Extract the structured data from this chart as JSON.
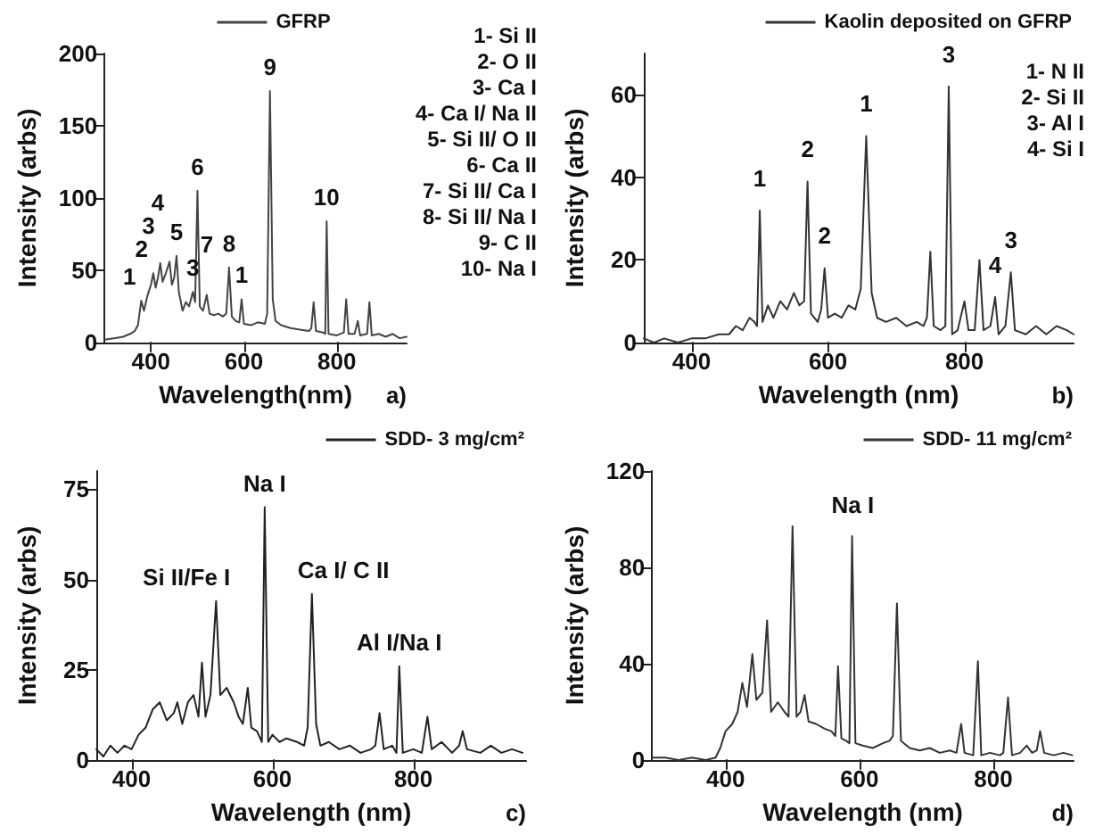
{
  "chart_data": [
    {
      "type": "line",
      "xlabel": "Wavelength(nm)",
      "ylabel": "Intensity (arbs)",
      "subtitle": "a)",
      "xlim": [
        300,
        950
      ],
      "xticks": [
        400,
        600,
        800
      ],
      "ylim": [
        0,
        200
      ],
      "yticks": [
        0,
        50,
        100,
        150,
        200
      ],
      "grid": false,
      "legend": "top",
      "marker": "none",
      "line_style": "solid",
      "x": [
        300,
        320,
        340,
        355,
        365,
        372,
        379,
        385,
        392,
        400,
        405,
        410,
        415,
        420,
        425,
        432,
        440,
        445,
        450,
        455,
        460,
        468,
        475,
        482,
        490,
        495,
        500,
        505,
        512,
        520,
        526,
        535,
        545,
        555,
        562,
        568,
        574,
        582,
        590,
        595,
        600,
        615,
        630,
        645,
        650,
        656,
        662,
        668,
        680,
        700,
        720,
        740,
        745,
        750,
        755,
        770,
        775,
        778,
        782,
        800,
        815,
        820,
        825,
        838,
        845,
        850,
        865,
        870,
        875,
        890,
        905,
        920,
        935,
        950
      ],
      "series": [
        {
          "name": "GFRP",
          "color": "#444444",
          "values": [
            2,
            3,
            4,
            6,
            8,
            12,
            29,
            22,
            32,
            40,
            48,
            38,
            45,
            55,
            42,
            48,
            56,
            40,
            45,
            60,
            35,
            22,
            28,
            25,
            35,
            28,
            105,
            25,
            22,
            33,
            20,
            19,
            20,
            18,
            20,
            52,
            18,
            15,
            14,
            30,
            13,
            12,
            14,
            13,
            20,
            174,
            30,
            15,
            12,
            10,
            9,
            8,
            10,
            28,
            8,
            7,
            6,
            84,
            6,
            5,
            7,
            30,
            6,
            6,
            15,
            5,
            6,
            28,
            5,
            6,
            4,
            6,
            3,
            4
          ]
        }
      ],
      "annotations": [
        {
          "text": "1",
          "x": 379,
          "y": 29
        },
        {
          "text": "2",
          "x": 405,
          "y": 48
        },
        {
          "text": "3",
          "x": 420,
          "y": 55
        },
        {
          "text": "4",
          "x": 440,
          "y": 56
        },
        {
          "text": "5",
          "x": 455,
          "y": 60
        },
        {
          "text": "3",
          "x": 490,
          "y": 35
        },
        {
          "text": "6",
          "x": 500,
          "y": 105
        },
        {
          "text": "7",
          "x": 520,
          "y": 33
        },
        {
          "text": "8",
          "x": 568,
          "y": 52
        },
        {
          "text": "1",
          "x": 595,
          "y": 30
        },
        {
          "text": "9",
          "x": 656,
          "y": 174
        },
        {
          "text": "10",
          "x": 778,
          "y": 84
        },
        "1- Si II",
        "2- O II",
        "3- Ca I",
        "4- Ca I/ Na II",
        "5- Si II/ O II",
        "6- Ca II",
        "7- Si II/ Ca I",
        "8- Si II/ Na I",
        "9- C II",
        "10- Na I"
      ]
    },
    {
      "type": "line",
      "xlabel": "Wavelength (nm)",
      "ylabel": "Intensity (arbs)",
      "subtitle": "b)",
      "xlim": [
        330,
        960
      ],
      "xticks": [
        400,
        600,
        800
      ],
      "ylim": [
        0,
        70
      ],
      "yticks": [
        0,
        20,
        40,
        60
      ],
      "grid": false,
      "legend": "top right",
      "marker": "none",
      "line_style": "solid",
      "x": [
        330,
        345,
        360,
        380,
        400,
        420,
        440,
        455,
        465,
        475,
        485,
        492,
        496,
        500,
        504,
        512,
        520,
        530,
        540,
        550,
        558,
        565,
        570,
        575,
        585,
        590,
        595,
        600,
        610,
        620,
        630,
        640,
        648,
        656,
        664,
        672,
        685,
        700,
        715,
        730,
        740,
        745,
        750,
        755,
        765,
        772,
        777,
        782,
        790,
        800,
        806,
        815,
        822,
        828,
        838,
        845,
        850,
        860,
        868,
        874,
        890,
        905,
        920,
        935,
        950,
        960
      ],
      "series": [
        {
          "name": "Kaolin deposited on GFRP",
          "color": "#333333",
          "values": [
            1,
            0,
            1,
            0,
            1,
            1,
            2,
            2,
            4,
            3,
            6,
            5,
            4,
            32,
            5,
            9,
            6,
            10,
            8,
            12,
            9,
            10,
            39,
            7,
            5,
            8,
            18,
            6,
            7,
            6,
            9,
            8,
            13,
            50,
            12,
            6,
            5,
            6,
            4,
            5,
            4,
            6,
            22,
            4,
            3,
            4,
            62,
            2,
            3,
            10,
            3,
            3,
            20,
            3,
            4,
            11,
            2,
            4,
            17,
            3,
            2,
            4,
            2,
            4,
            3,
            2
          ]
        }
      ],
      "annotations": [
        {
          "text": "1",
          "x": 500,
          "y": 34
        },
        {
          "text": "2",
          "x": 570,
          "y": 41
        },
        {
          "text": "2",
          "x": 595,
          "y": 20
        },
        {
          "text": "1",
          "x": 656,
          "y": 52
        },
        {
          "text": "3",
          "x": 777,
          "y": 64
        },
        {
          "text": "4",
          "x": 845,
          "y": 13
        },
        {
          "text": "3",
          "x": 868,
          "y": 19
        },
        "1- N II",
        "2- Si II",
        "3- Al I",
        "4- Si I"
      ]
    },
    {
      "type": "line",
      "xlabel": "Wavelength (nm)",
      "ylabel": "Intensity (arbs)",
      "subtitle": "c)",
      "xlim": [
        350,
        960
      ],
      "xticks": [
        400,
        600,
        800
      ],
      "ylim": [
        0,
        80
      ],
      "yticks": [
        0,
        25,
        50,
        75
      ],
      "grid": false,
      "legend": "top right",
      "marker": "none",
      "line_style": "solid",
      "x": [
        350,
        360,
        370,
        380,
        390,
        400,
        410,
        420,
        430,
        440,
        450,
        460,
        465,
        472,
        480,
        488,
        495,
        500,
        505,
        512,
        520,
        526,
        535,
        545,
        552,
        558,
        565,
        570,
        578,
        585,
        589,
        594,
        600,
        610,
        620,
        635,
        645,
        650,
        656,
        662,
        668,
        680,
        695,
        710,
        725,
        740,
        746,
        752,
        758,
        770,
        776,
        780,
        785,
        800,
        812,
        820,
        826,
        840,
        855,
        865,
        870,
        876,
        895,
        910,
        925,
        940,
        955
      ],
      "series": [
        {
          "name": "SDD- 3 mg/cm²",
          "color": "#222222",
          "values": [
            3,
            1,
            4,
            2,
            4,
            3,
            7,
            9,
            14,
            16,
            11,
            13,
            16,
            10,
            16,
            18,
            12,
            27,
            12,
            18,
            44,
            18,
            20,
            16,
            12,
            10,
            20,
            9,
            8,
            5,
            70,
            5,
            7,
            5,
            6,
            5,
            4,
            9,
            46,
            10,
            4,
            5,
            3,
            4,
            2,
            3,
            4,
            13,
            3,
            4,
            2,
            26,
            2,
            3,
            2,
            12,
            3,
            5,
            2,
            4,
            8,
            3,
            2,
            4,
            2,
            3,
            2
          ]
        }
      ],
      "annotations": [
        {
          "text": "Si II/Fe I",
          "x": 520,
          "y": 44
        },
        {
          "text": "Na I",
          "x": 589,
          "y": 70
        },
        {
          "text": "Ca I/ C II",
          "x": 656,
          "y": 46
        },
        {
          "text": "Al I/Na I",
          "x": 780,
          "y": 26
        }
      ]
    },
    {
      "type": "line",
      "xlabel": "Wavelength (nm)",
      "ylabel": "Intensity (arbs)",
      "subtitle": "d)",
      "xlim": [
        290,
        920
      ],
      "xticks": [
        400,
        600,
        800
      ],
      "ylim": [
        0,
        120
      ],
      "yticks": [
        0,
        40,
        80,
        120
      ],
      "grid": false,
      "legend": "top right",
      "marker": "none",
      "line_style": "solid",
      "x": [
        290,
        310,
        330,
        350,
        370,
        385,
        392,
        400,
        410,
        418,
        425,
        432,
        440,
        446,
        455,
        462,
        468,
        478,
        488,
        494,
        500,
        506,
        512,
        518,
        524,
        535,
        548,
        558,
        564,
        568,
        573,
        580,
        585,
        589,
        594,
        605,
        620,
        635,
        645,
        650,
        656,
        662,
        675,
        690,
        705,
        720,
        735,
        745,
        752,
        757,
        770,
        777,
        782,
        795,
        810,
        815,
        822,
        828,
        840,
        850,
        858,
        865,
        870,
        876,
        890,
        905,
        918
      ],
      "series": [
        {
          "name": "SDD- 11 mg/cm²",
          "color": "#333333",
          "values": [
            1,
            1,
            0,
            1,
            0,
            1,
            5,
            12,
            15,
            20,
            32,
            22,
            44,
            25,
            28,
            58,
            20,
            24,
            20,
            18,
            97,
            18,
            20,
            27,
            16,
            15,
            13,
            12,
            10,
            39,
            9,
            8,
            7,
            93,
            7,
            6,
            5,
            7,
            8,
            10,
            65,
            8,
            5,
            4,
            5,
            3,
            4,
            3,
            15,
            3,
            2,
            41,
            2,
            3,
            2,
            3,
            26,
            2,
            3,
            6,
            3,
            4,
            12,
            3,
            2,
            3,
            2
          ]
        }
      ],
      "annotations": [
        {
          "text": "Na I",
          "x": 590,
          "y": 96
        }
      ]
    }
  ]
}
